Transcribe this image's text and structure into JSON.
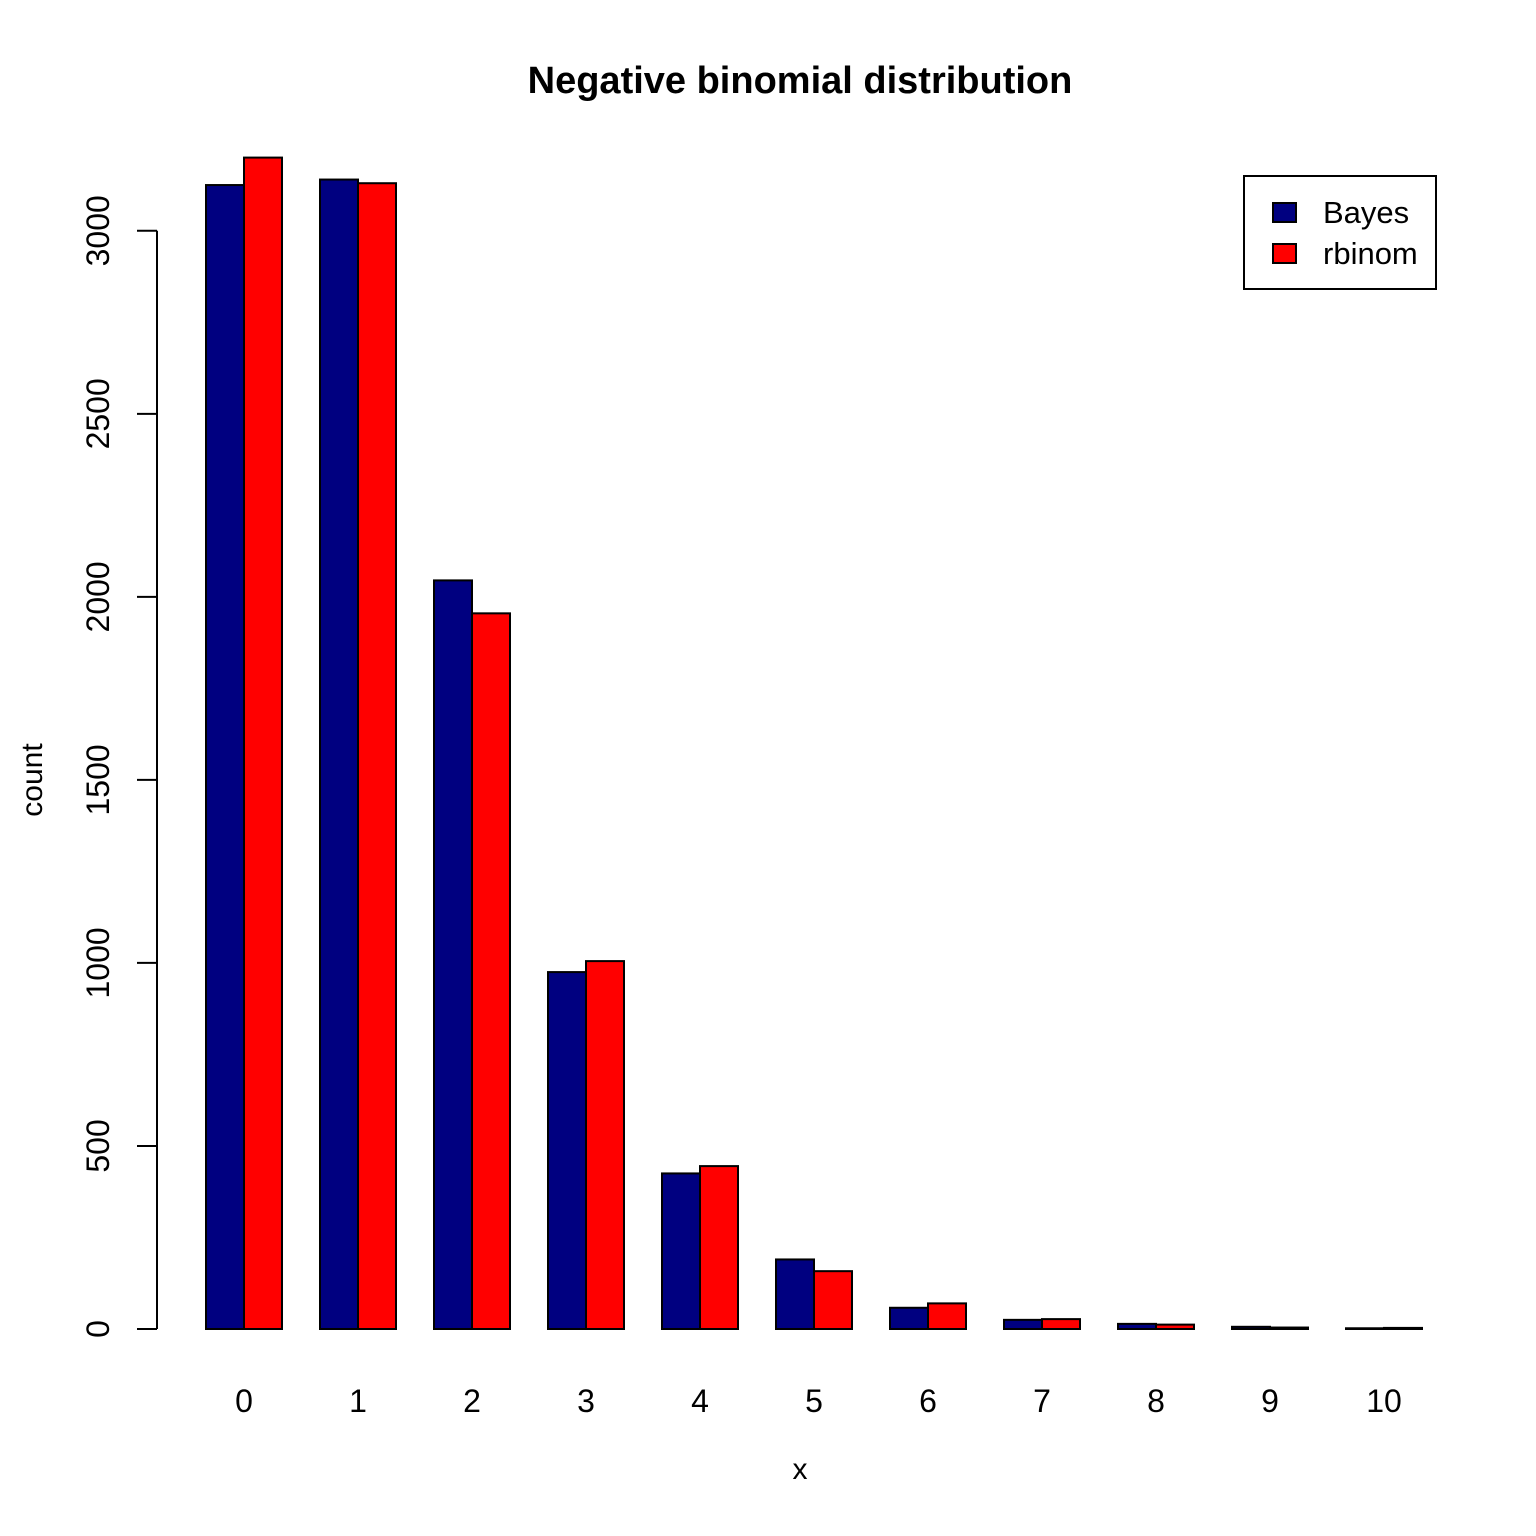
{
  "chart_data": {
    "type": "bar",
    "title": "Negative binomial distribution",
    "xlabel": "x",
    "ylabel": "count",
    "categories": [
      "0",
      "1",
      "2",
      "3",
      "4",
      "5",
      "6",
      "7",
      "8",
      "9",
      "10"
    ],
    "series": [
      {
        "name": "Bayes",
        "color": "#000080",
        "values": [
          3125,
          3140,
          2045,
          975,
          425,
          190,
          58,
          25,
          14,
          6,
          2
        ]
      },
      {
        "name": "rbinom",
        "color": "#FF0000",
        "values": [
          3200,
          3130,
          1955,
          1005,
          445,
          158,
          70,
          27,
          12,
          4,
          3
        ]
      }
    ],
    "ylim": [
      0,
      3000
    ],
    "yticks": [
      0,
      500,
      1000,
      1500,
      2000,
      2500,
      3000
    ],
    "grid": false,
    "legend_position": "top-right",
    "bar_border_color": "#000000",
    "background_color": "#FFFFFF"
  }
}
